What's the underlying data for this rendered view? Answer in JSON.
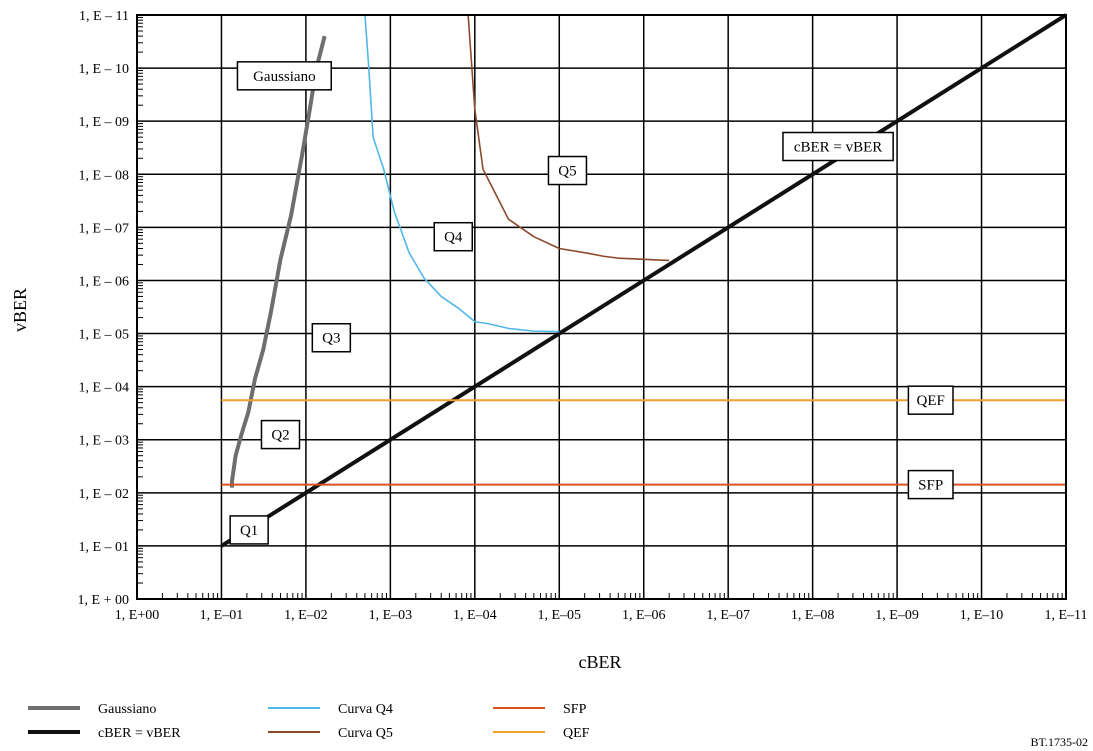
{
  "chart_data": {
    "type": "line",
    "xlabel": "cBER",
    "ylabel": "vBER",
    "x_scale": "log-reversed",
    "y_scale": "log",
    "xlim": [
      1,
      1e-11
    ],
    "ylim": [
      1,
      1e-11
    ],
    "grid": true,
    "legend_position": "bottom",
    "x_tick_values": [
      1,
      0.1,
      0.01,
      0.001,
      0.0001,
      1e-05,
      1e-06,
      1e-07,
      1e-08,
      1e-09,
      1e-10,
      1e-11
    ],
    "x_tick_labels": [
      "1, E+00",
      "1, E–01",
      "1, E–02",
      "1, E–03",
      "1, E–04",
      "1, E–05",
      "1, E–06",
      "1, E–07",
      "1, E–08",
      "1, E–09",
      "1, E–10",
      "1, E–11"
    ],
    "y_tick_values": [
      1,
      0.1,
      0.01,
      0.001,
      0.0001,
      1e-05,
      1e-06,
      1e-07,
      1e-08,
      1e-09,
      1e-10,
      1e-11
    ],
    "y_tick_labels": [
      "1, E + 00",
      "1, E – 01",
      "1, E – 02",
      "1, E – 03",
      "1, E – 04",
      "1, E – 05",
      "1, E – 06",
      "1, E – 07",
      "1, E – 08",
      "1, E – 09",
      "1, E – 10",
      "1, E – 11"
    ],
    "series": [
      {
        "name": "Gaussiano",
        "color": "#6e6e6e",
        "x": [
          0.075,
          0.075,
          0.068,
          0.058,
          0.048,
          0.04,
          0.032,
          0.026,
          0.02,
          0.015,
          0.011,
          0.009,
          0.0075,
          0.006
        ],
        "y": [
          0.008,
          0.006,
          0.002,
          0.0008,
          0.0003,
          7e-05,
          2e-05,
          4e-06,
          4e-07,
          6e-08,
          4e-09,
          6e-10,
          1e-10,
          2.5e-11
        ]
      },
      {
        "name": "cBER = vBER",
        "color": "#111111",
        "x": [
          0.1,
          1e-11
        ],
        "y": [
          0.1,
          1e-11
        ]
      },
      {
        "name": "Curva Q4",
        "color": "#4fb8e6",
        "x": [
          0.002,
          0.0018,
          0.0016,
          0.0012,
          0.0009,
          0.0006,
          0.0004,
          0.00025,
          0.00015,
          0.0001,
          7e-05,
          4e-05,
          2e-05,
          1e-05
        ],
        "y": [
          1e-11,
          1e-10,
          2e-09,
          8e-09,
          5e-08,
          3e-07,
          9e-07,
          2e-06,
          3.5e-06,
          6e-06,
          6.5e-06,
          8e-06,
          9e-06,
          9.2e-06
        ]
      },
      {
        "name": "Curva Q5",
        "color": "#8b4a2b",
        "x": [
          0.00012,
          0.0001,
          8e-05,
          4e-05,
          2e-05,
          1e-05,
          5e-06,
          3e-06,
          2e-06,
          1e-06,
          7e-07,
          5e-07
        ],
        "y": [
          1e-11,
          6e-10,
          8e-09,
          7e-08,
          1.5e-07,
          2.5e-07,
          3e-07,
          3.5e-07,
          3.8e-07,
          4e-07,
          4.1e-07,
          4.2e-07
        ]
      },
      {
        "name": "SFP",
        "color": "#d9531e",
        "x": [
          0.1,
          1e-11
        ],
        "y": [
          0.007,
          0.007
        ]
      },
      {
        "name": "QEF",
        "color": "#f0a030",
        "x": [
          0.1,
          1e-11
        ],
        "y": [
          0.00018,
          0.00018
        ]
      }
    ],
    "annotations": [
      {
        "text": "Gaussiano",
        "x": 0.018,
        "y": 1.4e-10
      },
      {
        "text": "cBER = vBER",
        "x": 5e-09,
        "y": 3e-09
      },
      {
        "text": "Q5",
        "x": 8e-06,
        "y": 8.5e-09
      },
      {
        "text": "Q4",
        "x": 0.00018,
        "y": 1.5e-07
      },
      {
        "text": "Q3",
        "x": 0.005,
        "y": 1.2e-05
      },
      {
        "text": "Q2",
        "x": 0.02,
        "y": 0.0008
      },
      {
        "text": "Q1",
        "x": 0.047,
        "y": 0.05
      },
      {
        "text": "QEF",
        "x": 4e-10,
        "y": 0.00018
      },
      {
        "text": "SFP",
        "x": 4e-10,
        "y": 0.007
      }
    ],
    "legend": [
      {
        "label": "Gaussiano",
        "color": "#6e6e6e"
      },
      {
        "label": "cBER = vBER",
        "color": "#111111"
      },
      {
        "label": "Curva Q4",
        "color": "#4fb8e6"
      },
      {
        "label": "Curva Q5",
        "color": "#8b4a2b"
      },
      {
        "label": "SFP",
        "color": "#d9531e"
      },
      {
        "label": "QEF",
        "color": "#f0a030"
      }
    ]
  },
  "figure_code": "BT.1735-02"
}
